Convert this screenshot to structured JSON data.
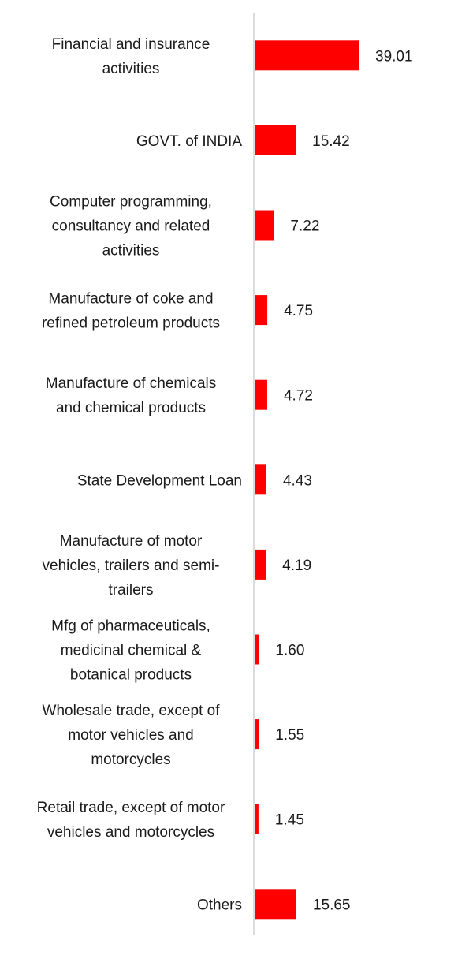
{
  "chart_data": {
    "type": "bar",
    "orientation": "horizontal",
    "categories": [
      [
        "Financial and insurance",
        "activities"
      ],
      [
        "GOVT. of INDIA"
      ],
      [
        "Computer programming,",
        "consultancy and related",
        "activities"
      ],
      [
        "Manufacture of coke and",
        "refined petroleum products"
      ],
      [
        "Manufacture of chemicals",
        "and chemical products"
      ],
      [
        "State Development Loan"
      ],
      [
        "Manufacture of motor",
        "vehicles, trailers and semi-",
        "trailers"
      ],
      [
        "Mfg of pharmaceuticals,",
        "medicinal chemical &",
        "botanical products"
      ],
      [
        "Wholesale trade, except of",
        "motor vehicles and",
        "motorcycles"
      ],
      [
        "Retail trade, except of motor",
        "vehicles and motorcycles"
      ],
      [
        "Others"
      ]
    ],
    "values": [
      39.01,
      15.42,
      7.22,
      4.75,
      4.72,
      4.43,
      4.19,
      1.6,
      1.55,
      1.45,
      15.65
    ],
    "value_labels": [
      "39.01",
      "15.42",
      "7.22",
      "4.75",
      "4.72",
      "4.43",
      "4.19",
      "1.60",
      "1.55",
      "1.45",
      "15.65"
    ],
    "bar_color": "#ff0000",
    "axis_color": "#d0d0d0",
    "grid": false,
    "legend": "none",
    "xlim": [
      0,
      39.01
    ]
  }
}
